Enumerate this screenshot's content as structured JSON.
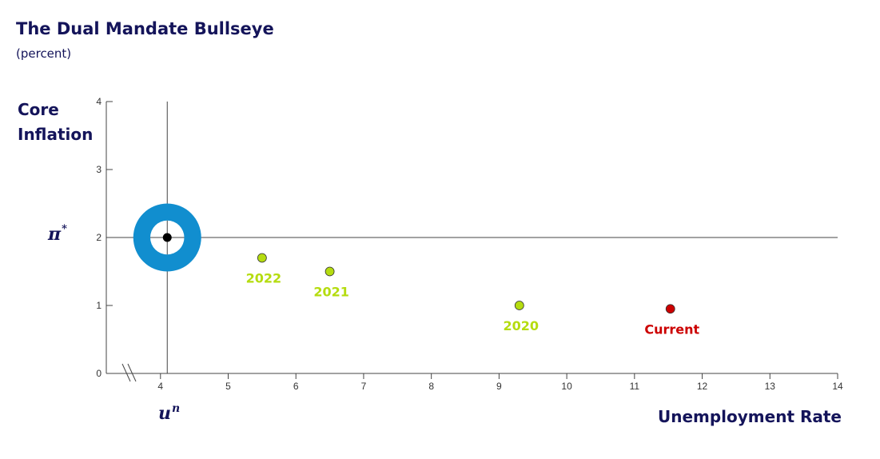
{
  "chart_data": {
    "type": "scatter",
    "title": "The Dual Mandate Bullseye",
    "subtitle": "(percent)",
    "xlabel": "Unemployment Rate",
    "ylabel": "Core Inflation",
    "xlim": [
      3.2,
      14
    ],
    "ylim": [
      0,
      4
    ],
    "x_ticks": [
      4,
      5,
      6,
      7,
      8,
      9,
      10,
      11,
      12,
      13,
      14
    ],
    "y_ticks": [
      0,
      1,
      2,
      3,
      4
    ],
    "axis_break": "x",
    "grid": false,
    "target": {
      "x": 4.1,
      "y": 2,
      "x_symbol": "u",
      "x_symbol_sup": "n",
      "y_symbol": "π",
      "y_symbol_sup": "*",
      "outer_radius": 0.5,
      "inner_radius": 0.25,
      "ring_color": "#118ecf",
      "center_color": "#000000"
    },
    "points": [
      {
        "label": "2022",
        "x": 5.5,
        "y": 1.7,
        "color": "#b5dc10"
      },
      {
        "label": "2021",
        "x": 6.5,
        "y": 1.5,
        "color": "#b5dc10"
      },
      {
        "label": "2020",
        "x": 9.3,
        "y": 1.0,
        "color": "#b5dc10"
      },
      {
        "label": "Current",
        "x": 11.53,
        "y": 0.95,
        "color": "#cc0000"
      }
    ]
  }
}
